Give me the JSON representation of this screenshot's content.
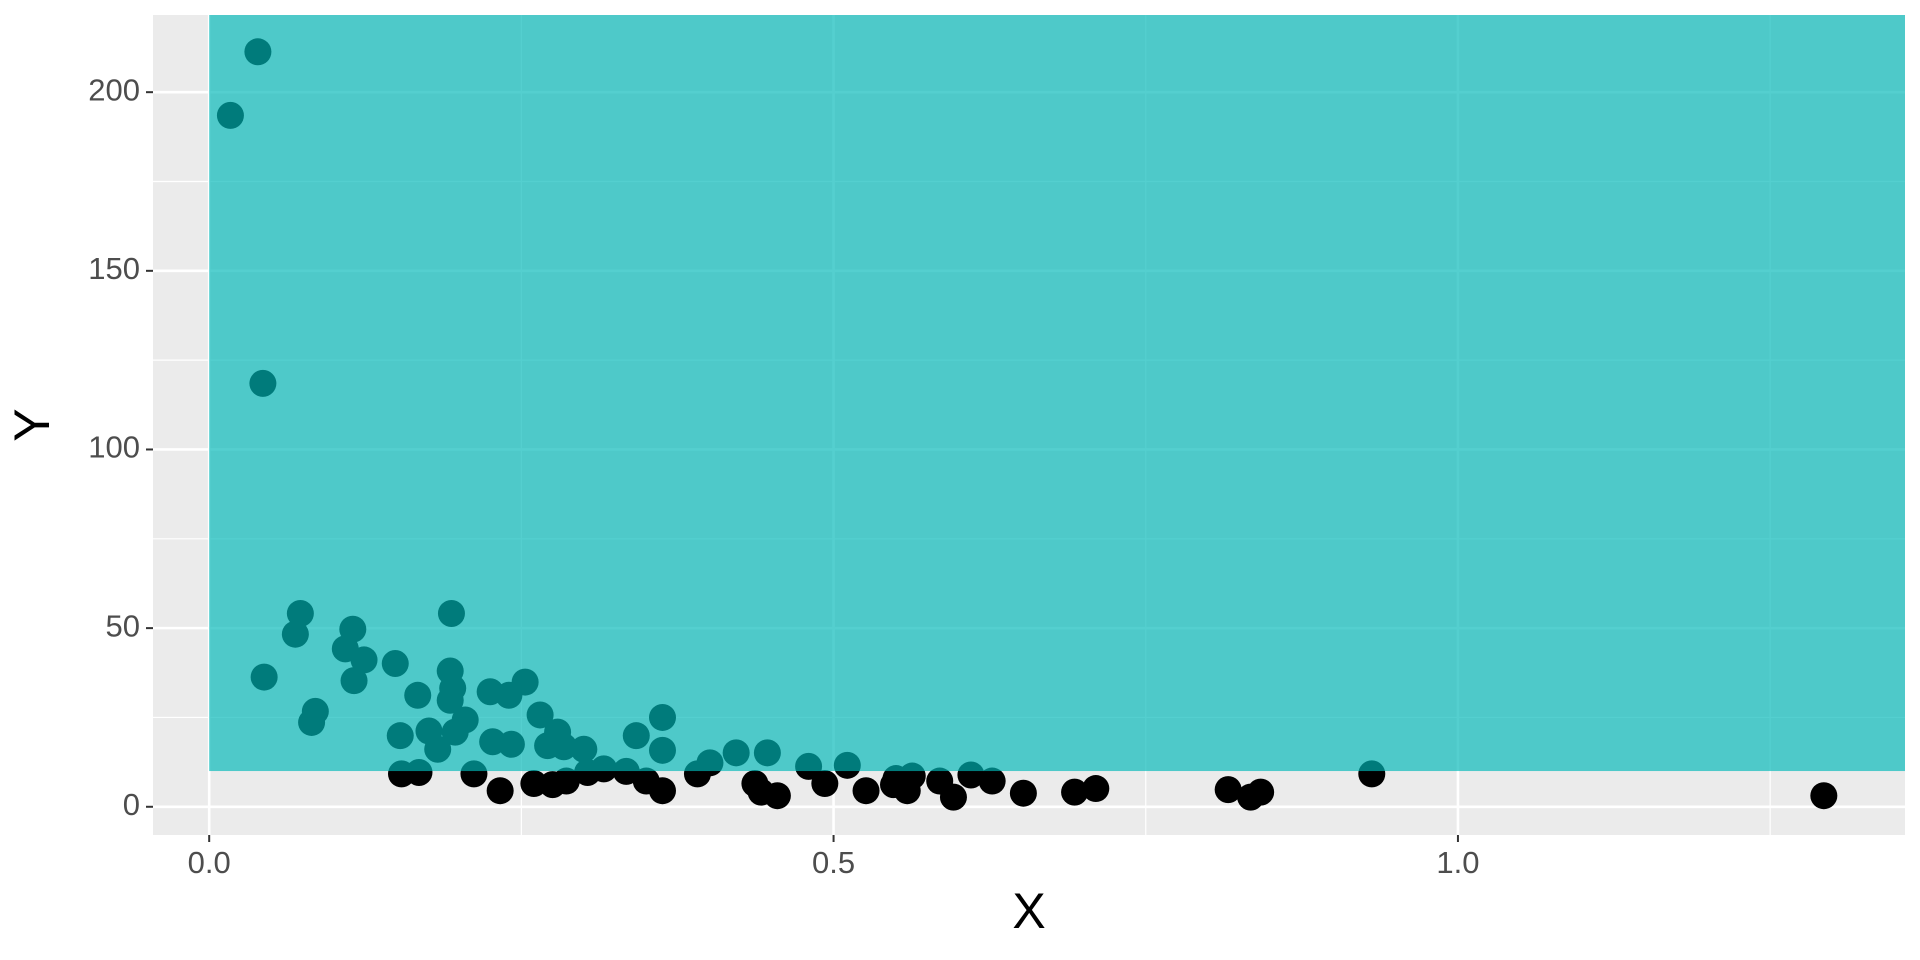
{
  "chart_data": {
    "type": "scatter",
    "xlabel": "X",
    "ylabel": "Y",
    "xlim": [
      -0.045,
      1.358
    ],
    "ylim": [
      -7.9,
      221.6
    ],
    "xticks": [
      {
        "value": 0,
        "label": "0.0"
      },
      {
        "value": 0.5,
        "label": "0.5"
      },
      {
        "value": 1,
        "label": "1.0"
      }
    ],
    "yticks": [
      0,
      50,
      100,
      150,
      200
    ],
    "xminor_ticks": [
      0.25,
      0.75,
      1.25
    ],
    "yminor_ticks": [
      25,
      75,
      125,
      175
    ],
    "grid": true,
    "point_color": "#000000",
    "highlight_rect": {
      "xmin": 0,
      "xmax": 1.358,
      "ymin": 10,
      "ymax": 221.6,
      "color": "#00b8b8",
      "opacity": 0.67
    },
    "x": [
      0.017,
      0.039,
      0.043,
      0.044,
      0.073,
      0.069,
      0.082,
      0.085,
      0.109,
      0.115,
      0.116,
      0.124,
      0.149,
      0.153,
      0.167,
      0.176,
      0.183,
      0.194,
      0.193,
      0.195,
      0.193,
      0.197,
      0.205,
      0.225,
      0.227,
      0.24,
      0.242,
      0.253,
      0.265,
      0.271,
      0.279,
      0.284,
      0.3,
      0.342,
      0.363,
      0.363,
      0.401,
      0.422,
      0.447,
      0.48,
      0.511,
      0.55,
      0.563,
      0.585,
      0.61,
      0.627,
      0.931,
      0.154,
      0.168,
      0.212,
      0.233,
      0.26,
      0.275,
      0.286,
      0.303,
      0.316,
      0.334,
      0.35,
      0.363,
      0.391,
      0.437,
      0.442,
      0.455,
      0.493,
      0.526,
      0.548,
      0.559,
      0.596,
      0.652,
      0.693,
      0.71,
      0.816,
      0.834,
      0.842,
      1.293
    ],
    "values": [
      193.5,
      211.3,
      118.5,
      36.3,
      54.1,
      48.3,
      23.6,
      26.7,
      44.2,
      49.7,
      35.3,
      41.1,
      40.1,
      19.9,
      31.2,
      21.2,
      16.1,
      54.1,
      38.0,
      33.2,
      29.8,
      20.9,
      24.3,
      32.2,
      18.2,
      31.2,
      17.5,
      34.9,
      25.7,
      17.1,
      20.9,
      16.8,
      16.1,
      19.9,
      25.0,
      15.8,
      12.3,
      15.1,
      15.1,
      11.3,
      11.6,
      7.9,
      8.6,
      7.2,
      8.9,
      7.2,
      9.2,
      9.2,
      9.6,
      9.2,
      4.5,
      6.5,
      6.2,
      7.2,
      9.6,
      10.6,
      9.9,
      7.2,
      4.5,
      9.2,
      6.5,
      4.1,
      3.1,
      6.5,
      4.5,
      6.2,
      4.5,
      2.7,
      3.8,
      4.1,
      5.1,
      4.8,
      2.7,
      4.1,
      3.1
    ]
  }
}
